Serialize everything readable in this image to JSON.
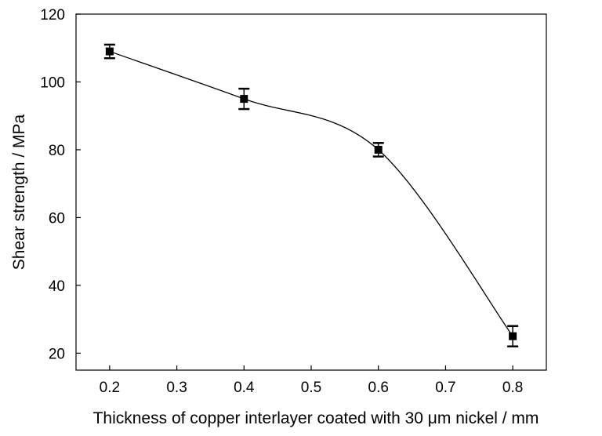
{
  "chart_data": {
    "type": "scatter",
    "title": "",
    "xlabel": "Thickness of copper interlayer coated with 30 μm nickel / mm",
    "ylabel": "Shear strength / MPa",
    "xlim": [
      0.15,
      0.85
    ],
    "ylim": [
      15,
      120
    ],
    "x_ticks": [
      0.2,
      0.3,
      0.4,
      0.5,
      0.6,
      0.7,
      0.8
    ],
    "x_tick_labels": [
      "0.2",
      "0.3",
      "0.4",
      "0.5",
      "0.6",
      "0.7",
      "0.8"
    ],
    "y_ticks": [
      20,
      40,
      60,
      80,
      100,
      120
    ],
    "y_tick_labels": [
      "20",
      "40",
      "60",
      "80",
      "100",
      "120"
    ],
    "grid": false,
    "legend": "none",
    "series": [
      {
        "marker": "square",
        "color": "#000000",
        "line": "smooth",
        "x": [
          0.2,
          0.4,
          0.6,
          0.8
        ],
        "y": [
          109,
          95,
          80,
          25
        ],
        "error": [
          2,
          3,
          2,
          3
        ]
      }
    ]
  }
}
